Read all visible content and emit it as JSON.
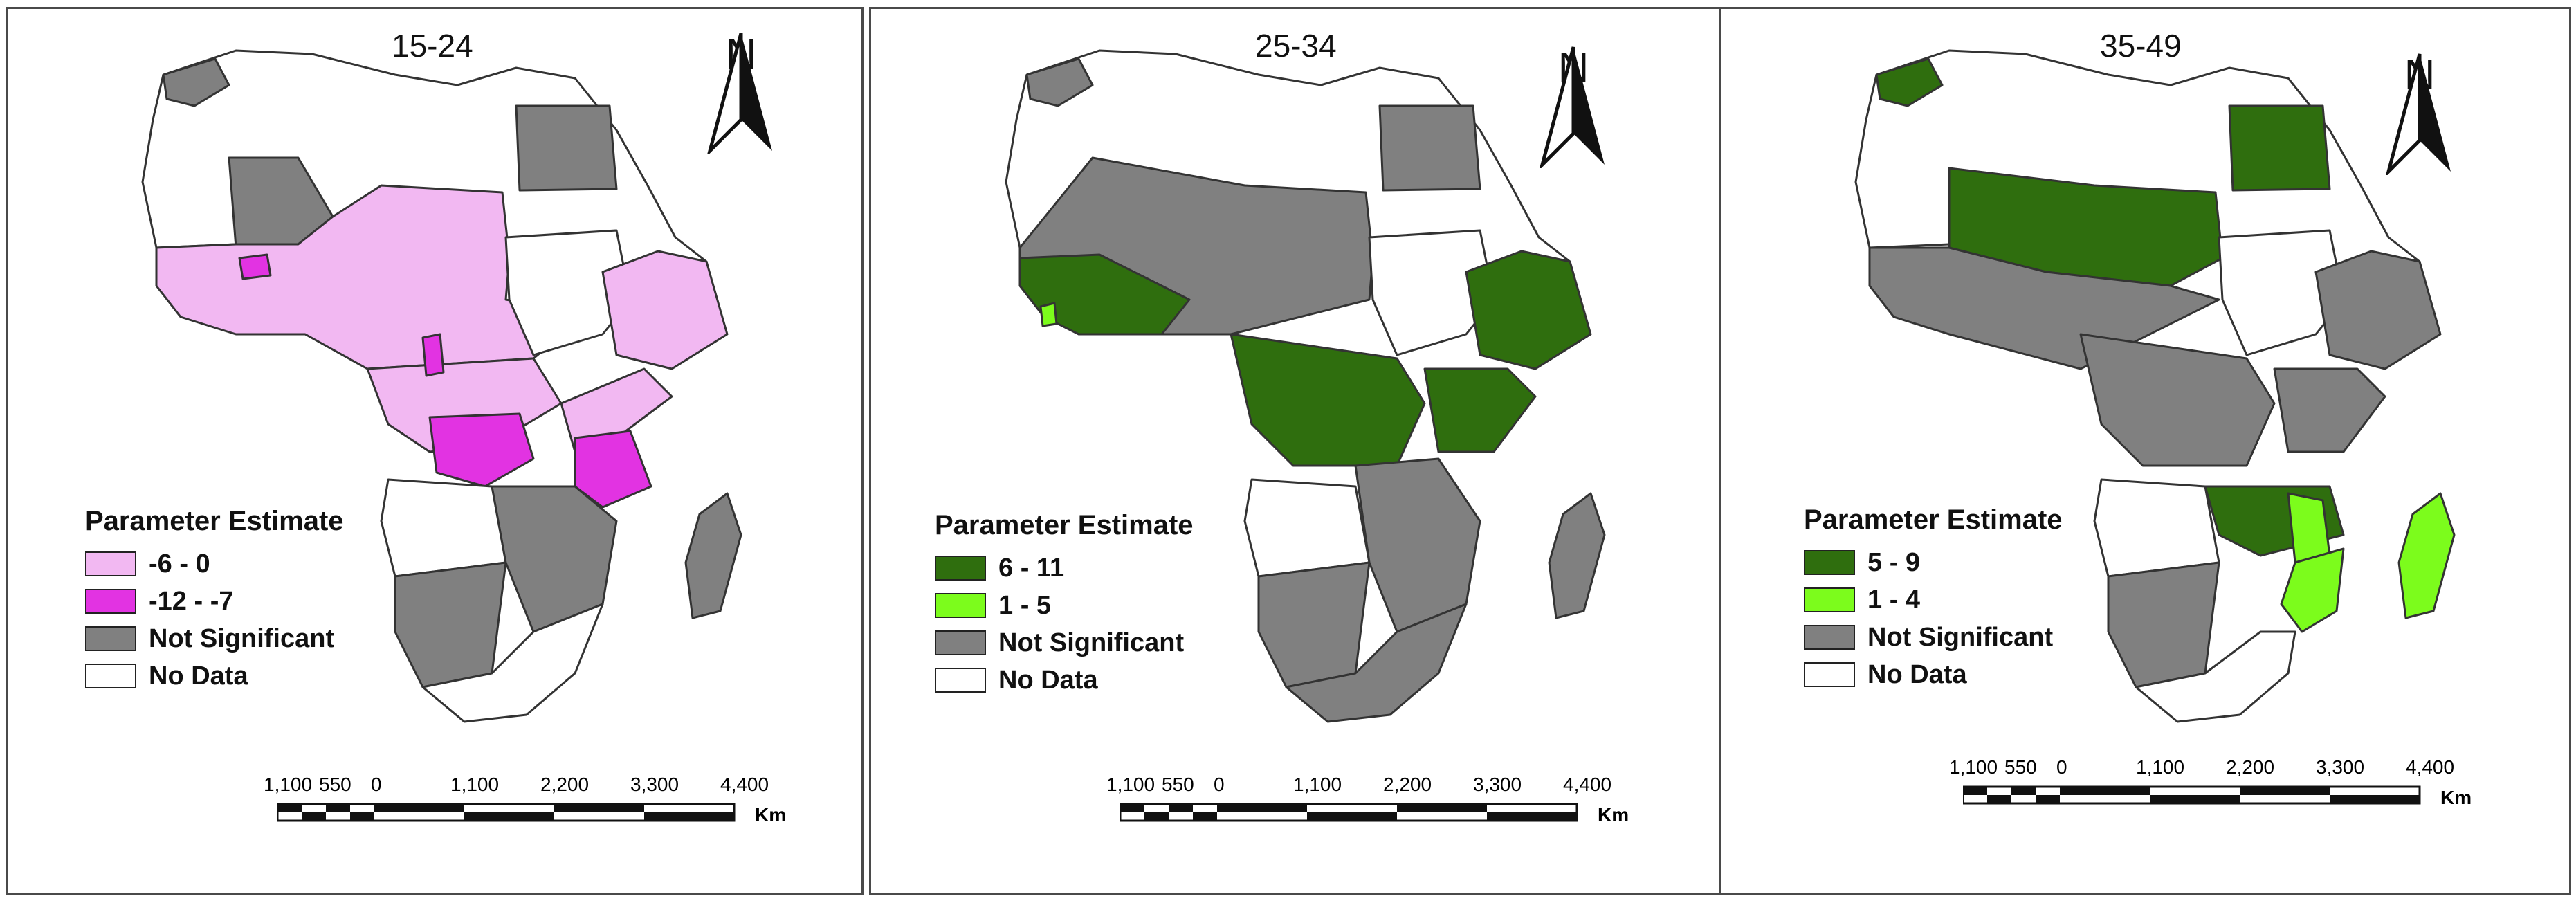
{
  "panels": [
    {
      "title": "15-24",
      "legend": {
        "title": "Parameter Estimate",
        "items": [
          {
            "label": "-6 - 0",
            "color": "#f2b8f2"
          },
          {
            "label": "-12 - -7",
            "color": "#e233e2"
          },
          {
            "label": "Not Significant",
            "color": "#808080"
          },
          {
            "label": "No Data",
            "color": "#ffffff"
          }
        ]
      }
    },
    {
      "title": "25-34",
      "legend": {
        "title": "Parameter Estimate",
        "items": [
          {
            "label": "6 - 11",
            "color": "#2f6e0e"
          },
          {
            "label": "1 - 5",
            "color": "#7cfc1c"
          },
          {
            "label": "Not Significant",
            "color": "#808080"
          },
          {
            "label": "No Data",
            "color": "#ffffff"
          }
        ]
      }
    },
    {
      "title": "35-49",
      "legend": {
        "title": "Parameter Estimate",
        "items": [
          {
            "label": "5 - 9",
            "color": "#2f6e0e"
          },
          {
            "label": "1 - 4",
            "color": "#7cfc1c"
          },
          {
            "label": "Not Significant",
            "color": "#808080"
          },
          {
            "label": "No Data",
            "color": "#ffffff"
          }
        ]
      }
    }
  ],
  "north_arrow": {
    "label": "N"
  },
  "scale_bar": {
    "labels": [
      "1,100",
      "550",
      "0",
      "1,100",
      "2,200",
      "3,300",
      "4,400"
    ],
    "unit": "Km"
  },
  "colors": {
    "border": "#333333",
    "water": "#ffffff"
  }
}
